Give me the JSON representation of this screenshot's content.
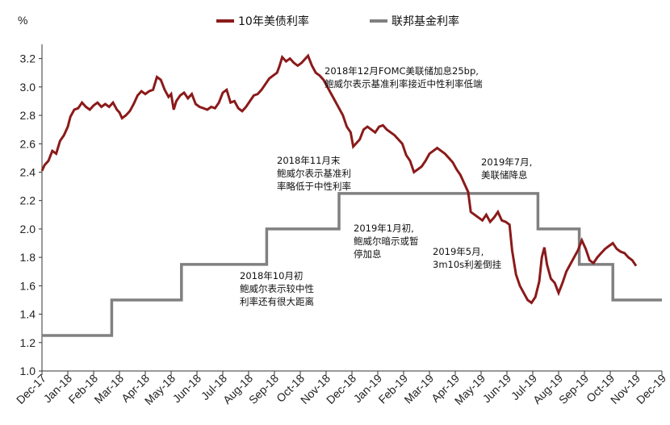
{
  "chart_data": {
    "type": "line",
    "ylabel": "%",
    "ylim": [
      1.0,
      3.3
    ],
    "yticks": [
      "1.0",
      "1.2",
      "1.4",
      "1.6",
      "1.8",
      "2.0",
      "2.2",
      "2.4",
      "2.6",
      "2.8",
      "3.0",
      "3.2"
    ],
    "categories": [
      "Dec-17",
      "Jan-18",
      "Feb-18",
      "Mar-18",
      "Apr-18",
      "May-18",
      "Jun-18",
      "Jul-18",
      "Aug-18",
      "Sep-18",
      "Oct-18",
      "Nov-18",
      "Dec-18",
      "Jan-19",
      "Feb-19",
      "Mar-19",
      "Apr-19",
      "May-19",
      "Jun-19",
      "Jul-19",
      "Aug-19",
      "Sep-19",
      "Oct-19",
      "Nov-19",
      "Dec-19"
    ],
    "legend_position": "top",
    "series": [
      {
        "name": "10年美债利率",
        "color": "#8B1A1A",
        "points": [
          [
            0.0,
            2.41
          ],
          [
            0.1,
            2.45
          ],
          [
            0.25,
            2.48
          ],
          [
            0.4,
            2.55
          ],
          [
            0.55,
            2.53
          ],
          [
            0.7,
            2.62
          ],
          [
            0.85,
            2.66
          ],
          [
            1.0,
            2.72
          ],
          [
            1.1,
            2.79
          ],
          [
            1.25,
            2.84
          ],
          [
            1.4,
            2.85
          ],
          [
            1.55,
            2.89
          ],
          [
            1.7,
            2.86
          ],
          [
            1.85,
            2.84
          ],
          [
            2.0,
            2.87
          ],
          [
            2.15,
            2.89
          ],
          [
            2.3,
            2.86
          ],
          [
            2.45,
            2.88
          ],
          [
            2.6,
            2.86
          ],
          [
            2.75,
            2.89
          ],
          [
            2.9,
            2.84
          ],
          [
            3.0,
            2.82
          ],
          [
            3.1,
            2.78
          ],
          [
            3.25,
            2.8
          ],
          [
            3.4,
            2.83
          ],
          [
            3.55,
            2.88
          ],
          [
            3.7,
            2.94
          ],
          [
            3.85,
            2.97
          ],
          [
            4.0,
            2.95
          ],
          [
            4.15,
            2.97
          ],
          [
            4.3,
            2.98
          ],
          [
            4.45,
            3.07
          ],
          [
            4.6,
            3.05
          ],
          [
            4.75,
            2.98
          ],
          [
            4.9,
            2.93
          ],
          [
            5.0,
            2.95
          ],
          [
            5.1,
            2.84
          ],
          [
            5.2,
            2.9
          ],
          [
            5.35,
            2.94
          ],
          [
            5.5,
            2.96
          ],
          [
            5.65,
            2.92
          ],
          [
            5.8,
            2.95
          ],
          [
            5.95,
            2.88
          ],
          [
            6.1,
            2.86
          ],
          [
            6.25,
            2.85
          ],
          [
            6.4,
            2.84
          ],
          [
            6.55,
            2.86
          ],
          [
            6.7,
            2.85
          ],
          [
            6.85,
            2.89
          ],
          [
            7.0,
            2.96
          ],
          [
            7.15,
            2.98
          ],
          [
            7.3,
            2.89
          ],
          [
            7.45,
            2.9
          ],
          [
            7.6,
            2.85
          ],
          [
            7.75,
            2.83
          ],
          [
            7.9,
            2.86
          ],
          [
            8.05,
            2.9
          ],
          [
            8.2,
            2.94
          ],
          [
            8.35,
            2.95
          ],
          [
            8.5,
            2.98
          ],
          [
            8.65,
            3.02
          ],
          [
            8.8,
            3.06
          ],
          [
            8.95,
            3.08
          ],
          [
            9.1,
            3.1
          ],
          [
            9.2,
            3.15
          ],
          [
            9.3,
            3.21
          ],
          [
            9.45,
            3.18
          ],
          [
            9.6,
            3.2
          ],
          [
            9.75,
            3.17
          ],
          [
            9.9,
            3.15
          ],
          [
            10.05,
            3.17
          ],
          [
            10.2,
            3.2
          ],
          [
            10.3,
            3.22
          ],
          [
            10.45,
            3.15
          ],
          [
            10.6,
            3.1
          ],
          [
            10.75,
            3.08
          ],
          [
            10.9,
            3.05
          ],
          [
            11.05,
            3.0
          ],
          [
            11.2,
            2.95
          ],
          [
            11.35,
            2.9
          ],
          [
            11.5,
            2.85
          ],
          [
            11.65,
            2.8
          ],
          [
            11.8,
            2.72
          ],
          [
            11.95,
            2.68
          ],
          [
            12.05,
            2.58
          ],
          [
            12.15,
            2.6
          ],
          [
            12.3,
            2.63
          ],
          [
            12.45,
            2.7
          ],
          [
            12.6,
            2.72
          ],
          [
            12.75,
            2.7
          ],
          [
            12.9,
            2.68
          ],
          [
            13.05,
            2.72
          ],
          [
            13.2,
            2.73
          ],
          [
            13.35,
            2.7
          ],
          [
            13.5,
            2.68
          ],
          [
            13.65,
            2.66
          ],
          [
            13.8,
            2.63
          ],
          [
            13.95,
            2.6
          ],
          [
            14.1,
            2.52
          ],
          [
            14.25,
            2.48
          ],
          [
            14.4,
            2.4
          ],
          [
            14.55,
            2.42
          ],
          [
            14.7,
            2.44
          ],
          [
            14.85,
            2.48
          ],
          [
            15.0,
            2.53
          ],
          [
            15.15,
            2.55
          ],
          [
            15.3,
            2.57
          ],
          [
            15.45,
            2.55
          ],
          [
            15.6,
            2.53
          ],
          [
            15.75,
            2.5
          ],
          [
            15.9,
            2.47
          ],
          [
            16.05,
            2.42
          ],
          [
            16.2,
            2.38
          ],
          [
            16.35,
            2.32
          ],
          [
            16.5,
            2.26
          ],
          [
            16.6,
            2.12
          ],
          [
            16.75,
            2.1
          ],
          [
            16.9,
            2.08
          ],
          [
            17.05,
            2.06
          ],
          [
            17.2,
            2.1
          ],
          [
            17.35,
            2.05
          ],
          [
            17.5,
            2.08
          ],
          [
            17.65,
            2.12
          ],
          [
            17.8,
            2.06
          ],
          [
            17.95,
            2.05
          ],
          [
            18.1,
            2.03
          ],
          [
            18.2,
            1.85
          ],
          [
            18.35,
            1.68
          ],
          [
            18.5,
            1.6
          ],
          [
            18.65,
            1.55
          ],
          [
            18.8,
            1.5
          ],
          [
            18.95,
            1.48
          ],
          [
            19.1,
            1.52
          ],
          [
            19.25,
            1.63
          ],
          [
            19.35,
            1.8
          ],
          [
            19.45,
            1.87
          ],
          [
            19.55,
            1.75
          ],
          [
            19.7,
            1.65
          ],
          [
            19.85,
            1.62
          ],
          [
            20.0,
            1.55
          ],
          [
            20.15,
            1.62
          ],
          [
            20.3,
            1.7
          ],
          [
            20.45,
            1.75
          ],
          [
            20.6,
            1.8
          ],
          [
            20.75,
            1.85
          ],
          [
            20.9,
            1.92
          ],
          [
            21.05,
            1.86
          ],
          [
            21.2,
            1.78
          ],
          [
            21.35,
            1.76
          ],
          [
            21.5,
            1.8
          ],
          [
            21.65,
            1.83
          ],
          [
            21.8,
            1.86
          ],
          [
            21.95,
            1.88
          ],
          [
            22.1,
            1.9
          ],
          [
            22.25,
            1.86
          ],
          [
            22.4,
            1.84
          ],
          [
            22.55,
            1.83
          ],
          [
            22.7,
            1.8
          ],
          [
            22.85,
            1.78
          ],
          [
            23.0,
            1.74
          ]
        ]
      },
      {
        "name": "联邦基金利率",
        "color": "#808080",
        "points": [
          [
            0.0,
            1.25
          ],
          [
            2.7,
            1.25
          ],
          [
            2.7,
            1.5
          ],
          [
            5.4,
            1.5
          ],
          [
            5.4,
            1.75
          ],
          [
            8.7,
            1.75
          ],
          [
            8.7,
            2.0
          ],
          [
            11.5,
            2.0
          ],
          [
            11.5,
            2.25
          ],
          [
            19.2,
            2.25
          ],
          [
            19.2,
            2.0
          ],
          [
            20.8,
            2.0
          ],
          [
            20.8,
            1.75
          ],
          [
            22.1,
            1.75
          ],
          [
            22.1,
            1.5
          ],
          [
            24.0,
            1.5
          ]
        ]
      }
    ],
    "annotations": [
      {
        "lines": [
          "2018年12月FOMC美联储加息25bp,",
          "鲍威尔表示基准利率接近中性利率低端"
        ]
      },
      {
        "lines": [
          "2018年11月末",
          "鲍威尔表示基准利",
          "率略低于中性利率"
        ]
      },
      {
        "lines": [
          "2018年10月初",
          "鲍威尔表示较中性",
          "利率还有很大距离"
        ]
      },
      {
        "lines": [
          "2019年1月初,",
          "鲍威尔暗示或暂",
          "停加息"
        ]
      },
      {
        "lines": [
          "2019年5月,",
          "3m10s利差倒挂"
        ]
      },
      {
        "lines": [
          "2019年7月,",
          "美联储降息"
        ]
      }
    ]
  }
}
